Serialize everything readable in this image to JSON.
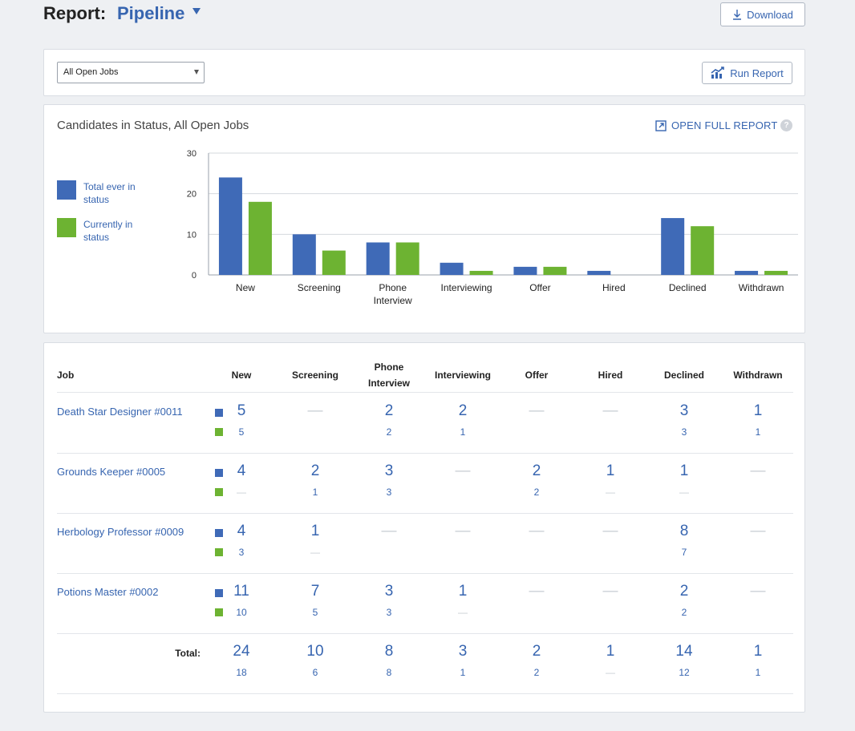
{
  "header": {
    "report_label": "Report:",
    "report_name": "Pipeline",
    "download_label": "Download"
  },
  "filter": {
    "selected_job": "All Open Jobs",
    "run_label": "Run Report"
  },
  "chart_panel": {
    "title": "Candidates in Status, All Open Jobs",
    "open_full_label": "OPEN FULL REPORT",
    "help_label": "?"
  },
  "colors": {
    "total": "#3f6ab7",
    "current": "#6db332"
  },
  "chart_data": {
    "type": "bar",
    "categories": [
      "New",
      "Screening",
      "Phone Interview",
      "Interviewing",
      "Offer",
      "Hired",
      "Declined",
      "Withdrawn"
    ],
    "category_lines": [
      [
        "New"
      ],
      [
        "Screening"
      ],
      [
        "Phone",
        "Interview"
      ],
      [
        "Interviewing"
      ],
      [
        "Offer"
      ],
      [
        "Hired"
      ],
      [
        "Declined"
      ],
      [
        "Withdrawn"
      ]
    ],
    "series": [
      {
        "name": "Total ever in status",
        "values": [
          24,
          10,
          8,
          3,
          2,
          1,
          14,
          1
        ]
      },
      {
        "name": "Currently in status",
        "values": [
          18,
          6,
          8,
          1,
          2,
          0,
          12,
          1
        ]
      }
    ],
    "y_ticks": [
      "0",
      "10",
      "20",
      "30"
    ],
    "ylim": [
      0,
      30
    ],
    "grid": true,
    "legend_position": "left"
  },
  "legend": {
    "total": [
      "Total ever in",
      "status"
    ],
    "current": [
      "Currently in",
      "status"
    ]
  },
  "table": {
    "job_header": "Job",
    "status_headers": [
      [
        "New"
      ],
      [
        "Screening"
      ],
      [
        "Phone",
        "Interview"
      ],
      [
        "Interviewing"
      ],
      [
        "Offer"
      ],
      [
        "Hired"
      ],
      [
        "Declined"
      ],
      [
        "Withdrawn"
      ]
    ],
    "rows": [
      {
        "job": "Death Star Designer #0011",
        "total": [
          "5",
          "—",
          "2",
          "2",
          "—",
          "—",
          "3",
          "1"
        ],
        "current": [
          "5",
          "",
          "2",
          "1",
          "",
          "",
          "3",
          "1"
        ]
      },
      {
        "job": "Grounds Keeper #0005",
        "total": [
          "4",
          "2",
          "3",
          "—",
          "2",
          "1",
          "1",
          "—"
        ],
        "current": [
          "—",
          "1",
          "3",
          "",
          "2",
          "—",
          "—",
          ""
        ]
      },
      {
        "job": "Herbology Professor #0009",
        "total": [
          "4",
          "1",
          "—",
          "—",
          "—",
          "—",
          "8",
          "—"
        ],
        "current": [
          "3",
          "—",
          "",
          "",
          "",
          "",
          "7",
          ""
        ]
      },
      {
        "job": "Potions Master #0002",
        "total": [
          "11",
          "7",
          "3",
          "1",
          "—",
          "—",
          "2",
          "—"
        ],
        "current": [
          "10",
          "5",
          "3",
          "—",
          "",
          "",
          "2",
          ""
        ]
      }
    ],
    "total_label": "Total:",
    "totals": {
      "total": [
        "24",
        "10",
        "8",
        "3",
        "2",
        "1",
        "14",
        "1"
      ],
      "current": [
        "18",
        "6",
        "8",
        "1",
        "2",
        "—",
        "12",
        "1"
      ]
    }
  }
}
